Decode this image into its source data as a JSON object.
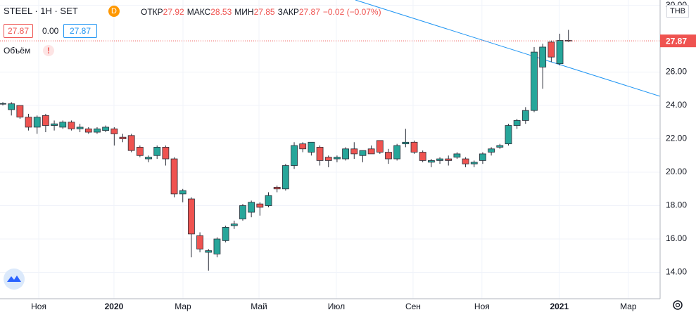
{
  "header": {
    "symbol": "STEEL · 1H · SET",
    "badge": "D",
    "ohlc": [
      {
        "label": "ОТКР",
        "value": "27.92"
      },
      {
        "label": "МАКС",
        "value": "28.53"
      },
      {
        "label": "МИН",
        "value": "27.85"
      },
      {
        "label": "ЗАКР",
        "value": "27.87"
      }
    ],
    "change": "−0.02 (−0.07%)",
    "bid": "27.87",
    "spread": "0.00",
    "ask": "27.87",
    "volume": "Объём",
    "warning": "!",
    "currency": "THB"
  },
  "chart_data": {
    "type": "candlestick",
    "open": [
      24.1,
      23.75,
      24.0,
      23.3,
      22.7,
      23.4,
      22.8,
      22.7,
      23.0,
      22.6,
      22.6,
      22.4,
      22.5,
      22.6,
      22.1,
      22.2,
      21.5,
      20.8,
      21.0,
      21.5,
      20.8,
      18.7,
      18.4,
      16.2,
      15.2,
      15.1,
      15.9,
      16.8,
      17.2,
      17.6,
      18.1,
      18.0,
      19.1,
      19.0,
      20.4,
      21.7,
      21.2,
      21.5,
      20.9,
      20.8,
      20.8,
      21.4,
      21.0,
      21.4,
      21.9,
      21.2,
      20.8,
      21.7,
      21.8,
      21.2,
      20.6,
      20.7,
      20.8,
      20.9,
      20.8,
      20.5,
      20.7,
      21.2,
      21.5,
      21.7,
      22.8,
      23.1,
      23.7,
      26.3,
      27.8,
      26.5,
      27.9
    ],
    "high": [
      24.2,
      24.2,
      24.0,
      23.5,
      23.4,
      23.5,
      23.1,
      23.1,
      23.1,
      22.9,
      22.7,
      22.7,
      22.8,
      22.7,
      22.3,
      22.3,
      21.6,
      21.0,
      21.6,
      21.6,
      20.9,
      19.0,
      18.5,
      16.4,
      15.4,
      16.1,
      16.8,
      17.1,
      18.1,
      18.3,
      18.2,
      18.8,
      19.2,
      20.5,
      21.8,
      21.8,
      21.8,
      21.6,
      21.0,
      21.0,
      21.5,
      21.8,
      21.2,
      21.6,
      21.9,
      21.4,
      21.7,
      22.6,
      21.9,
      21.3,
      20.8,
      20.9,
      21.0,
      21.2,
      20.9,
      20.7,
      21.2,
      21.5,
      21.7,
      22.9,
      23.2,
      23.9,
      27.5,
      27.7,
      27.9,
      28.3,
      28.53
    ],
    "low": [
      24.0,
      23.4,
      23.2,
      22.5,
      22.3,
      22.4,
      22.5,
      22.6,
      22.5,
      22.4,
      22.3,
      22.3,
      22.4,
      21.6,
      21.8,
      21.2,
      20.9,
      20.6,
      20.8,
      20.4,
      18.5,
      18.2,
      14.9,
      15.2,
      14.1,
      14.9,
      15.8,
      16.6,
      17.1,
      17.3,
      17.4,
      17.9,
      18.8,
      18.9,
      20.2,
      21.2,
      21.0,
      20.4,
      20.3,
      20.6,
      20.7,
      20.8,
      20.6,
      21.1,
      21.1,
      20.5,
      20.7,
      21.5,
      21.1,
      20.6,
      20.3,
      20.5,
      20.4,
      20.8,
      20.3,
      20.3,
      20.5,
      21.0,
      21.4,
      21.6,
      22.6,
      22.9,
      23.6,
      25.0,
      26.6,
      26.4,
      27.8
    ],
    "close": [
      24.12,
      24.1,
      23.3,
      22.7,
      23.3,
      22.8,
      22.9,
      23.0,
      22.6,
      22.7,
      22.4,
      22.6,
      22.7,
      22.3,
      22.0,
      21.3,
      21.0,
      20.9,
      21.5,
      20.8,
      18.7,
      18.9,
      16.3,
      15.4,
      15.3,
      16.0,
      16.7,
      16.9,
      18.0,
      18.2,
      17.9,
      18.6,
      19.0,
      20.4,
      21.6,
      21.4,
      21.8,
      20.7,
      20.7,
      20.9,
      21.4,
      21.1,
      21.3,
      21.1,
      21.2,
      20.8,
      21.6,
      21.8,
      21.2,
      20.7,
      20.7,
      20.8,
      20.7,
      21.1,
      20.5,
      20.6,
      21.1,
      21.4,
      21.6,
      22.8,
      23.1,
      23.7,
      27.2,
      27.5,
      26.9,
      27.9,
      27.87
    ],
    "up_color": "#26a69a",
    "down_color": "#ef5350",
    "last_price": 27.87,
    "ylim": [
      12.42,
      30.32
    ],
    "yticks": [
      {
        "value": 14,
        "label": "14.00"
      },
      {
        "value": 16,
        "label": "16.00"
      },
      {
        "value": 18,
        "label": "18.00"
      },
      {
        "value": 20,
        "label": "20.00"
      },
      {
        "value": 22,
        "label": "22.00"
      },
      {
        "value": 24,
        "label": "24.00"
      },
      {
        "value": 26,
        "label": "26.00"
      },
      {
        "value": 30,
        "label": "30.00"
      }
    ],
    "xlim": [
      -0.33,
      76.7
    ],
    "xticks": [
      {
        "value": 4.19,
        "label": "Ноя"
      },
      {
        "value": 12.97,
        "label": "2020"
      },
      {
        "value": 21.02,
        "label": "Мар"
      },
      {
        "value": 29.89,
        "label": "Май"
      },
      {
        "value": 38.92,
        "label": "Июл"
      },
      {
        "value": 47.87,
        "label": "Сен"
      },
      {
        "value": 55.91,
        "label": "Ноя"
      },
      {
        "value": 64.94,
        "label": "2021"
      },
      {
        "value": 72.99,
        "label": "Мар"
      }
    ],
    "grid": true
  }
}
